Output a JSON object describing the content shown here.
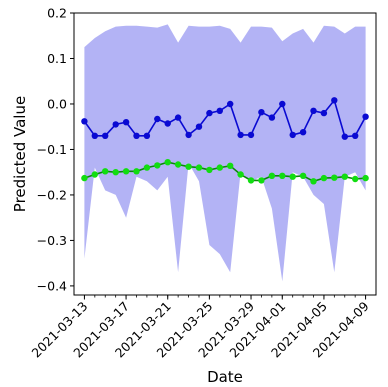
{
  "chart_data": {
    "type": "line",
    "title": "",
    "xlabel": "Date",
    "ylabel": "Predicted Value",
    "ylim": [
      -0.42,
      0.2
    ],
    "xlim": [
      "2021-03-12",
      "2021-04-10"
    ],
    "grid": false,
    "x_ticks": [
      "2021-03-13",
      "2021-03-17",
      "2021-03-21",
      "2021-03-25",
      "2021-03-29",
      "2021-04-01",
      "2021-04-05",
      "2021-04-09"
    ],
    "y_ticks": [
      0.2,
      0.1,
      0.0,
      -0.1,
      -0.2,
      -0.3,
      -0.4
    ],
    "y_tick_labels": [
      "0.2",
      "0.1",
      "0.0",
      "−0.1",
      "−0.2",
      "−0.3",
      "−0.4"
    ],
    "x": [
      "2021-03-13",
      "2021-03-14",
      "2021-03-15",
      "2021-03-16",
      "2021-03-17",
      "2021-03-18",
      "2021-03-19",
      "2021-03-20",
      "2021-03-21",
      "2021-03-22",
      "2021-03-23",
      "2021-03-24",
      "2021-03-25",
      "2021-03-26",
      "2021-03-27",
      "2021-03-28",
      "2021-03-29",
      "2021-03-30",
      "2021-03-31",
      "2021-04-01",
      "2021-04-02",
      "2021-04-03",
      "2021-04-04",
      "2021-04-05",
      "2021-04-06",
      "2021-04-07",
      "2021-04-08",
      "2021-04-09"
    ],
    "series": [
      {
        "color": "#0a0ad2",
        "marker": "circle",
        "values": [
          -0.038,
          -0.07,
          -0.07,
          -0.045,
          -0.04,
          -0.07,
          -0.07,
          -0.033,
          -0.043,
          -0.03,
          -0.068,
          -0.05,
          -0.02,
          -0.015,
          0.0,
          -0.068,
          -0.068,
          -0.018,
          -0.03,
          0.0,
          -0.068,
          -0.062,
          -0.015,
          -0.02,
          0.008,
          -0.072,
          -0.07,
          -0.028
        ]
      },
      {
        "color": "#11dd11",
        "line_color": "#0a8a0a",
        "marker": "circle",
        "values": [
          -0.163,
          -0.155,
          -0.148,
          -0.15,
          -0.148,
          -0.148,
          -0.14,
          -0.135,
          -0.128,
          -0.133,
          -0.138,
          -0.14,
          -0.145,
          -0.14,
          -0.136,
          -0.155,
          -0.168,
          -0.168,
          -0.158,
          -0.158,
          -0.16,
          -0.158,
          -0.17,
          -0.163,
          -0.162,
          -0.16,
          -0.165,
          -0.163
        ]
      }
    ],
    "band": {
      "color": "#8080ee",
      "upper": [
        0.125,
        0.145,
        0.16,
        0.17,
        0.172,
        0.172,
        0.17,
        0.168,
        0.175,
        0.135,
        0.172,
        0.17,
        0.17,
        0.172,
        0.165,
        0.135,
        0.17,
        0.17,
        0.168,
        0.138,
        0.155,
        0.165,
        0.135,
        0.172,
        0.17,
        0.155,
        0.17,
        0.17
      ],
      "lower": [
        -0.34,
        -0.14,
        -0.19,
        -0.2,
        -0.25,
        -0.16,
        -0.17,
        -0.19,
        -0.16,
        -0.37,
        -0.13,
        -0.17,
        -0.31,
        -0.33,
        -0.37,
        -0.15,
        -0.17,
        -0.16,
        -0.23,
        -0.39,
        -0.15,
        -0.16,
        -0.2,
        -0.22,
        -0.37,
        -0.16,
        -0.15,
        -0.19
      ]
    }
  }
}
